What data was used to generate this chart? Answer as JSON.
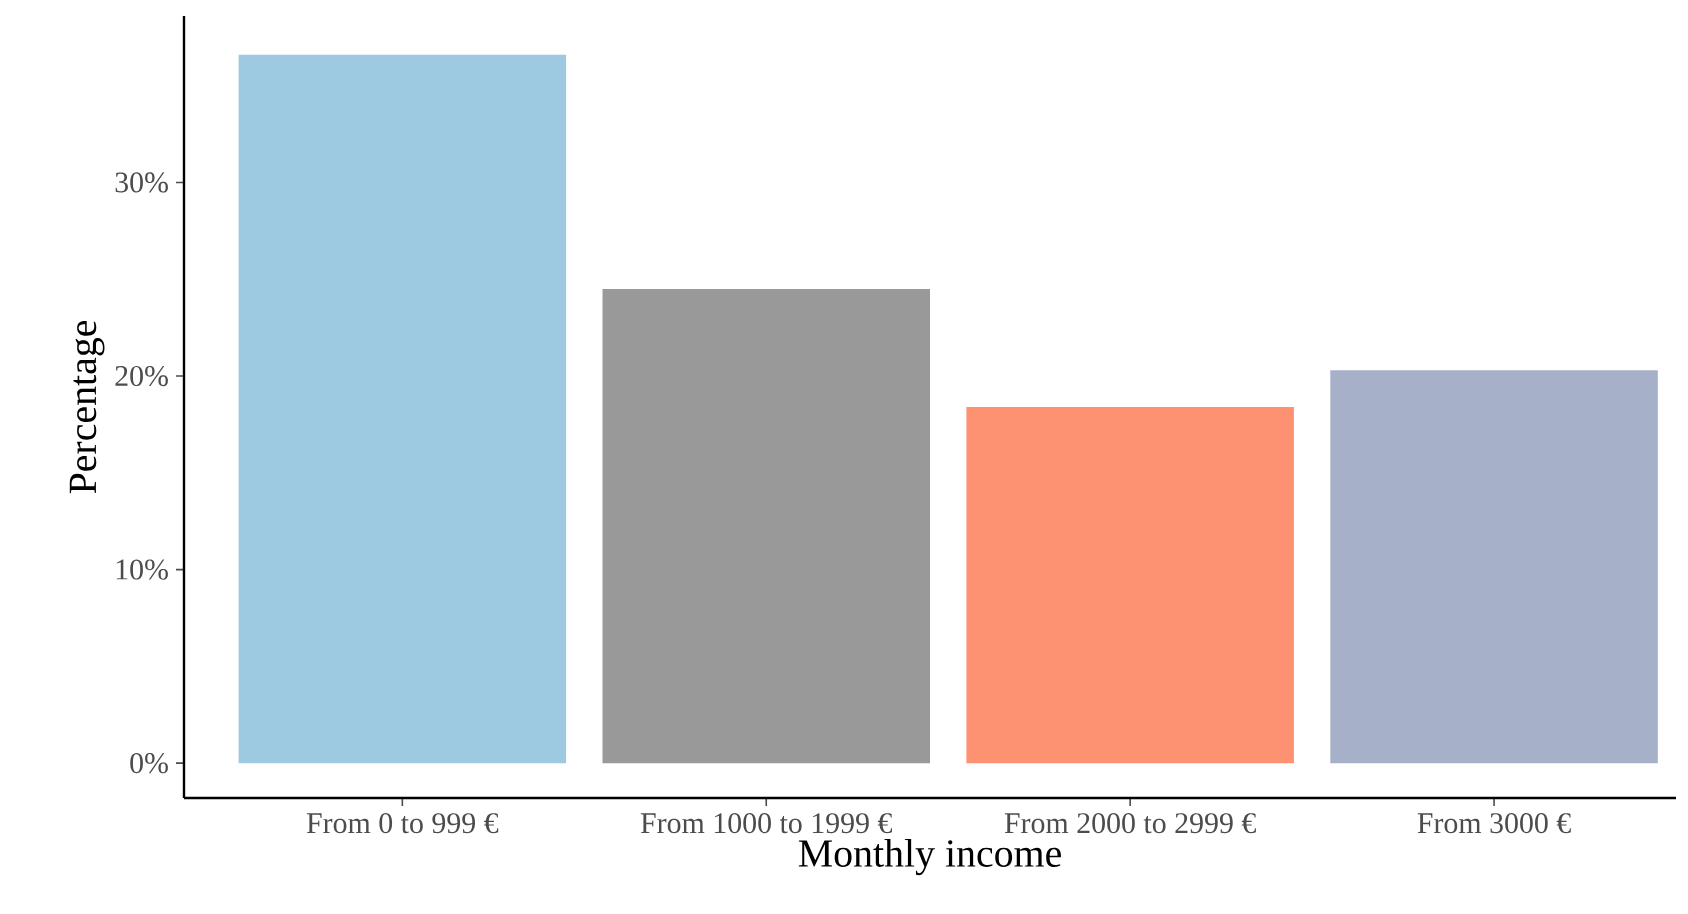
{
  "chart_data": {
    "type": "bar",
    "xlabel": "Monthly income",
    "ylabel": "Percentage",
    "categories": [
      "From 0 to 999 €",
      "From 1000 to 1999 €",
      "From 2000 to 2999 €",
      "From 3000 €"
    ],
    "values": [
      36.6,
      24.5,
      18.4,
      20.3
    ],
    "colors": [
      "#9ecae1",
      "#999999",
      "#fc9272",
      "#a6b0c9"
    ],
    "ylim": [
      -1.8,
      38.6
    ],
    "yticks": [
      {
        "value": 0,
        "label": "0%"
      },
      {
        "value": 10,
        "label": "10%"
      },
      {
        "value": 20,
        "label": "20%"
      },
      {
        "value": 30,
        "label": "30%"
      }
    ],
    "grid": false
  }
}
